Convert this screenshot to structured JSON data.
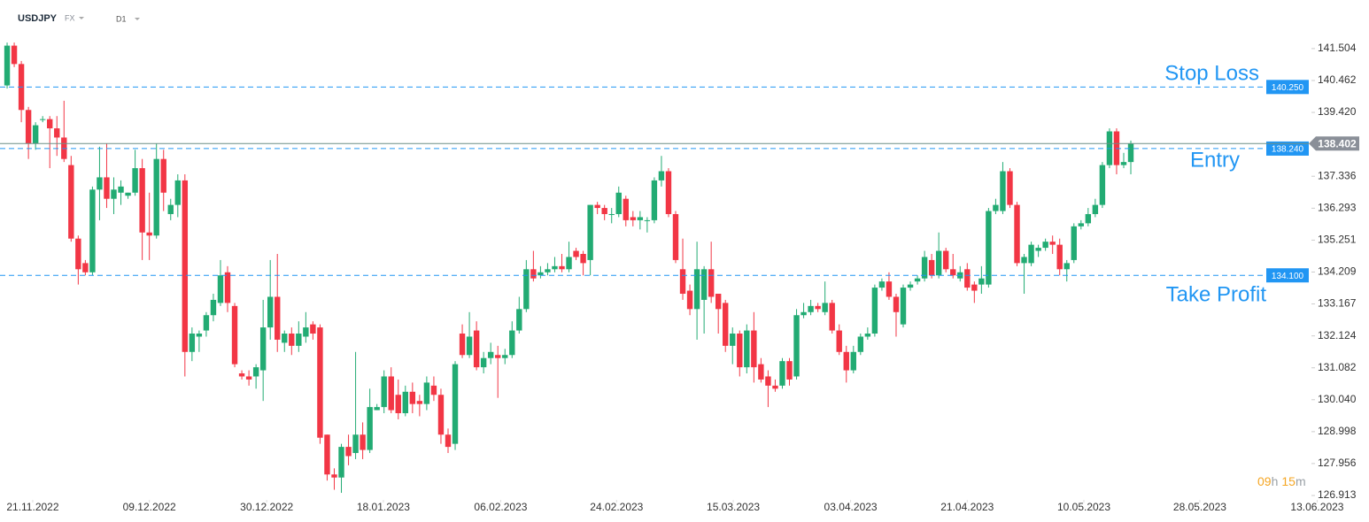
{
  "header": {
    "symbol": "USDJPY",
    "market": "FX",
    "timeframe": "D1"
  },
  "timer": {
    "hours": "09",
    "hours_unit": "h",
    "minutes": "15",
    "minutes_unit": "m"
  },
  "chart_data": {
    "type": "candlestick",
    "up_color": "#22ab73",
    "down_color": "#f23645",
    "xlim": [
      -1,
      189
    ],
    "ylim": [
      126.77,
      143.09
    ],
    "xticks": [
      {
        "value": 3.6,
        "label": "21.11.2022"
      },
      {
        "value": 20.0,
        "label": "09.12.2022"
      },
      {
        "value": 36.5,
        "label": "30.12.2022"
      },
      {
        "value": 52.9,
        "label": "18.01.2023"
      },
      {
        "value": 69.4,
        "label": "06.02.2023"
      },
      {
        "value": 85.7,
        "label": "24.02.2023"
      },
      {
        "value": 102.1,
        "label": "15.03.2023"
      },
      {
        "value": 118.6,
        "label": "03.04.2023"
      },
      {
        "value": 135.0,
        "label": "21.04.2023"
      },
      {
        "value": 151.4,
        "label": "10.05.2023"
      },
      {
        "value": 167.7,
        "label": "28.05.2023"
      },
      {
        "value": 184.2,
        "label": "13.06.2023"
      }
    ],
    "yticks": [
      141.504,
      140.462,
      {
        "value": 139.42,
        "label": "139.420"
      },
      138.378,
      137.336,
      136.293,
      135.251,
      134.209,
      133.167,
      132.124,
      131.082,
      {
        "value": 130.04,
        "label": "130.040"
      },
      128.998,
      127.956,
      126.913
    ],
    "levels": [
      {
        "name": "Stop Loss",
        "value": 140.25,
        "label": "140.250",
        "color": "#2196f3"
      },
      {
        "name": "Entry",
        "value": 138.24,
        "label": "138.240",
        "color": "#2196f3"
      },
      {
        "name": "Take Profit",
        "value": 134.1,
        "label": "134.100",
        "color": "#2196f3"
      }
    ],
    "last_price": 138.402,
    "last_price_color": "#8a8f98",
    "candles": [
      [
        140.3,
        141.7,
        140.2,
        141.6
      ],
      [
        141.6,
        141.7,
        140.9,
        141.0
      ],
      [
        141.0,
        141.1,
        139.1,
        139.5
      ],
      [
        139.5,
        139.6,
        137.9,
        138.4
      ],
      [
        138.4,
        139.1,
        138.2,
        139.0
      ],
      [
        139.2,
        139.3,
        139.1,
        139.2
      ],
      [
        139.2,
        139.3,
        137.6,
        138.9
      ],
      [
        138.9,
        139.3,
        138.0,
        138.6
      ],
      [
        138.6,
        139.8,
        137.8,
        137.9
      ],
      [
        137.7,
        138.0,
        135.2,
        135.3
      ],
      [
        135.3,
        135.4,
        133.8,
        134.3
      ],
      [
        134.5,
        134.6,
        134.1,
        134.2
      ],
      [
        134.2,
        137.0,
        134.1,
        136.9
      ],
      [
        136.9,
        138.3,
        135.9,
        137.3
      ],
      [
        137.3,
        138.4,
        136.3,
        136.6
      ],
      [
        136.6,
        137.3,
        136.1,
        136.9
      ],
      [
        136.8,
        137.2,
        136.4,
        137.0
      ],
      [
        136.7,
        136.8,
        136.6,
        136.8
      ],
      [
        136.8,
        138.2,
        136.7,
        137.6
      ],
      [
        137.6,
        137.9,
        134.6,
        135.5
      ],
      [
        135.5,
        136.8,
        134.6,
        135.4
      ],
      [
        135.4,
        138.4,
        135.3,
        137.9
      ],
      [
        137.9,
        138.2,
        136.2,
        136.8
      ],
      [
        136.1,
        136.6,
        135.9,
        136.4
      ],
      [
        136.4,
        137.4,
        136.0,
        137.2
      ],
      [
        137.2,
        137.4,
        130.8,
        131.6
      ],
      [
        131.6,
        132.4,
        131.3,
        132.2
      ],
      [
        132.1,
        132.3,
        131.6,
        132.2
      ],
      [
        132.3,
        132.9,
        132.1,
        132.8
      ],
      [
        132.8,
        133.5,
        132.6,
        133.3
      ],
      [
        133.2,
        134.6,
        133.1,
        134.1
      ],
      [
        134.2,
        134.4,
        132.9,
        133.2
      ],
      [
        133.1,
        133.2,
        131.1,
        131.2
      ],
      [
        130.9,
        131.0,
        130.7,
        130.8
      ],
      [
        130.8,
        131.0,
        130.5,
        130.7
      ],
      [
        130.8,
        131.2,
        130.4,
        131.1
      ],
      [
        131.0,
        133.3,
        130.0,
        132.4
      ],
      [
        132.4,
        134.6,
        132.0,
        133.4
      ],
      [
        133.4,
        134.8,
        131.6,
        132.0
      ],
      [
        131.9,
        132.3,
        131.6,
        132.2
      ],
      [
        132.2,
        132.4,
        131.5,
        131.8
      ],
      [
        131.8,
        132.6,
        131.6,
        132.2
      ],
      [
        132.1,
        132.9,
        131.9,
        132.4
      ],
      [
        132.5,
        132.6,
        132.0,
        132.2
      ],
      [
        132.4,
        132.5,
        128.6,
        128.8
      ],
      [
        128.9,
        128.9,
        127.4,
        127.6
      ],
      [
        127.6,
        127.8,
        127.1,
        127.5
      ],
      [
        127.5,
        128.6,
        127.0,
        128.5
      ],
      [
        128.5,
        128.9,
        127.9,
        128.2
      ],
      [
        128.3,
        131.6,
        128.1,
        128.9
      ],
      [
        128.9,
        129.3,
        128.1,
        128.4
      ],
      [
        128.4,
        130.4,
        128.3,
        129.8
      ],
      [
        129.7,
        129.9,
        129.7,
        129.8
      ],
      [
        129.8,
        131.0,
        129.6,
        130.8
      ],
      [
        130.8,
        131.1,
        129.6,
        129.7
      ],
      [
        130.2,
        130.7,
        129.4,
        129.6
      ],
      [
        129.6,
        130.5,
        129.5,
        130.3
      ],
      [
        130.3,
        130.6,
        129.6,
        129.9
      ],
      [
        130.0,
        130.2,
        129.5,
        129.9
      ],
      [
        129.9,
        130.8,
        129.7,
        130.6
      ],
      [
        130.5,
        130.8,
        130.0,
        130.2
      ],
      [
        130.2,
        130.4,
        128.6,
        128.9
      ],
      [
        128.9,
        129.1,
        128.3,
        128.5
      ],
      [
        128.6,
        131.3,
        128.4,
        131.2
      ],
      [
        132.2,
        132.5,
        131.4,
        131.5
      ],
      [
        131.5,
        132.9,
        131.4,
        132.1
      ],
      [
        132.3,
        132.6,
        131.0,
        131.1
      ],
      [
        131.1,
        131.6,
        130.9,
        131.4
      ],
      [
        131.4,
        131.9,
        131.2,
        131.6
      ],
      [
        131.5,
        131.8,
        130.1,
        131.4
      ],
      [
        131.4,
        131.7,
        131.2,
        131.5
      ],
      [
        131.5,
        132.6,
        131.4,
        132.3
      ],
      [
        132.3,
        133.4,
        132.2,
        133.0
      ],
      [
        133.0,
        134.6,
        132.9,
        134.3
      ],
      [
        134.3,
        134.9,
        133.9,
        134.0
      ],
      [
        134.1,
        134.4,
        134.0,
        134.2
      ],
      [
        134.2,
        134.5,
        134.1,
        134.3
      ],
      [
        134.3,
        134.7,
        134.2,
        134.4
      ],
      [
        134.4,
        134.8,
        134.2,
        134.3
      ],
      [
        134.3,
        135.2,
        134.2,
        134.7
      ],
      [
        134.9,
        135.0,
        134.6,
        134.7
      ],
      [
        134.8,
        134.9,
        134.1,
        134.5
      ],
      [
        134.6,
        136.4,
        134.1,
        136.4
      ],
      [
        136.4,
        136.5,
        136.1,
        136.3
      ],
      [
        136.3,
        136.4,
        135.9,
        136.1
      ],
      [
        136.1,
        136.3,
        135.8,
        136.1
      ],
      [
        136.1,
        137.0,
        136.0,
        136.8
      ],
      [
        136.6,
        136.7,
        135.7,
        135.9
      ],
      [
        136.0,
        136.2,
        135.7,
        135.9
      ],
      [
        135.9,
        136.2,
        135.6,
        136.0
      ],
      [
        135.9,
        136.0,
        135.5,
        135.9
      ],
      [
        135.9,
        137.3,
        135.8,
        137.2
      ],
      [
        137.2,
        138.0,
        137.0,
        137.5
      ],
      [
        137.5,
        137.6,
        136.0,
        136.1
      ],
      [
        136.1,
        136.2,
        134.5,
        134.6
      ],
      [
        134.3,
        135.3,
        133.3,
        133.5
      ],
      [
        133.6,
        133.8,
        132.8,
        133.0
      ],
      [
        133.0,
        135.2,
        132.0,
        134.3
      ],
      [
        133.3,
        134.4,
        132.2,
        134.3
      ],
      [
        134.3,
        135.2,
        133.2,
        133.4
      ],
      [
        133.5,
        133.5,
        132.2,
        133.0
      ],
      [
        133.2,
        133.3,
        131.6,
        131.8
      ],
      [
        131.8,
        132.4,
        131.2,
        132.2
      ],
      [
        132.2,
        132.3,
        130.8,
        131.1
      ],
      [
        131.1,
        132.5,
        130.9,
        132.3
      ],
      [
        132.3,
        132.9,
        130.6,
        131.1
      ],
      [
        131.2,
        131.4,
        130.6,
        130.7
      ],
      [
        130.8,
        131.0,
        129.8,
        130.5
      ],
      [
        130.5,
        130.7,
        130.3,
        130.4
      ],
      [
        130.5,
        131.4,
        130.4,
        131.3
      ],
      [
        131.3,
        131.4,
        130.5,
        130.7
      ],
      [
        130.8,
        133.0,
        130.7,
        132.8
      ],
      [
        132.8,
        133.2,
        132.7,
        132.9
      ],
      [
        132.9,
        133.3,
        132.8,
        133.1
      ],
      [
        133.1,
        133.2,
        132.9,
        133.0
      ],
      [
        132.9,
        133.9,
        132.8,
        133.2
      ],
      [
        133.2,
        133.3,
        132.2,
        132.3
      ],
      [
        132.3,
        132.5,
        131.5,
        131.6
      ],
      [
        131.6,
        131.8,
        130.6,
        131.0
      ],
      [
        131.0,
        131.8,
        130.9,
        131.6
      ],
      [
        131.6,
        132.2,
        131.5,
        132.1
      ],
      [
        132.1,
        132.4,
        132.0,
        132.2
      ],
      [
        132.2,
        133.8,
        132.1,
        133.7
      ],
      [
        133.7,
        134.0,
        133.6,
        133.9
      ],
      [
        133.9,
        134.2,
        133.3,
        133.4
      ],
      [
        133.4,
        133.5,
        132.1,
        132.9
      ],
      [
        132.5,
        133.8,
        132.4,
        133.7
      ],
      [
        133.7,
        133.9,
        133.6,
        133.8
      ],
      [
        133.9,
        134.1,
        133.8,
        134.0
      ],
      [
        134.0,
        134.9,
        133.9,
        134.7
      ],
      [
        134.6,
        134.8,
        134.0,
        134.1
      ],
      [
        134.1,
        135.5,
        134.0,
        134.9
      ],
      [
        134.9,
        135.0,
        134.2,
        134.3
      ],
      [
        134.3,
        134.8,
        134.0,
        134.1
      ],
      [
        134.0,
        134.4,
        133.9,
        134.2
      ],
      [
        134.3,
        134.5,
        133.6,
        133.7
      ],
      [
        133.8,
        133.9,
        133.2,
        133.6
      ],
      [
        133.8,
        134.4,
        133.5,
        134.0
      ],
      [
        133.8,
        136.3,
        133.7,
        136.2
      ],
      [
        136.2,
        136.6,
        136.1,
        136.4
      ],
      [
        136.2,
        137.8,
        136.1,
        137.5
      ],
      [
        137.5,
        137.6,
        136.3,
        136.4
      ],
      [
        136.4,
        136.5,
        134.4,
        134.5
      ],
      [
        134.5,
        134.8,
        133.5,
        134.7
      ],
      [
        134.5,
        135.2,
        134.4,
        135.1
      ],
      [
        134.9,
        135.1,
        134.7,
        135.0
      ],
      [
        135.0,
        135.3,
        134.9,
        135.2
      ],
      [
        135.2,
        135.4,
        134.8,
        135.1
      ],
      [
        135.1,
        135.3,
        134.1,
        134.3
      ],
      [
        134.3,
        134.6,
        133.9,
        134.5
      ],
      [
        134.6,
        135.8,
        134.5,
        135.7
      ],
      [
        135.7,
        135.9,
        135.6,
        135.8
      ],
      [
        135.8,
        136.3,
        135.7,
        136.1
      ],
      [
        136.1,
        136.6,
        136.0,
        136.4
      ],
      [
        136.4,
        137.8,
        136.3,
        137.7
      ],
      [
        137.7,
        138.9,
        137.6,
        138.8
      ],
      [
        138.8,
        138.9,
        137.4,
        137.7
      ],
      [
        137.7,
        138.1,
        137.6,
        137.8
      ],
      [
        137.8,
        138.5,
        137.4,
        138.402
      ]
    ]
  }
}
